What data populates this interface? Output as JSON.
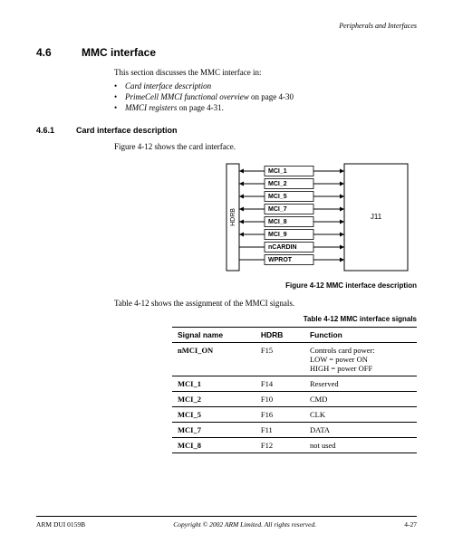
{
  "header": {
    "right": "Peripherals and Interfaces"
  },
  "section": {
    "number": "4.6",
    "title": "MMC interface"
  },
  "intro": "This section discusses the MMC interface in:",
  "bullets": [
    {
      "text": "Card interface description",
      "page": ""
    },
    {
      "text": "PrimeCell MMCI functional overview",
      "page": " on page 4-30"
    },
    {
      "text": "MMCI registers",
      "page": " on page 4-31."
    }
  ],
  "subsection": {
    "number": "4.6.1",
    "title": "Card interface description"
  },
  "fig_intro": "Figure 4-12 shows the card interface.",
  "diagram": {
    "left_label": "HDRB",
    "right_label": "J11",
    "signals": [
      "MCI_1",
      "MCI_2",
      "MCI_5",
      "MCI_7",
      "MCI_8",
      "MCI_9",
      "nCARDIN",
      "WPROT"
    ],
    "box_border": "#000000",
    "line_color": "#000000",
    "bg": "#ffffff",
    "font_size": 7
  },
  "fig_caption": "Figure 4-12 MMC interface description",
  "table_intro": "Table 4-12 shows the assignment of the MMCI signals.",
  "table_caption": "Table 4-12 MMC interface signals",
  "table": {
    "headers": [
      "Signal name",
      "HDRB",
      "Function"
    ],
    "rows": [
      {
        "name": "nMCI_ON",
        "hdrb": "F15",
        "func": "Controls card power:\nLOW = power ON\nHIGH = power OFF"
      },
      {
        "name": "MCI_1",
        "hdrb": "F14",
        "func": "Reserved"
      },
      {
        "name": "MCI_2",
        "hdrb": "F10",
        "func": "CMD"
      },
      {
        "name": "MCI_5",
        "hdrb": "F16",
        "func": "CLK"
      },
      {
        "name": "MCI_7",
        "hdrb": "F11",
        "func": "DATA"
      },
      {
        "name": "MCI_8",
        "hdrb": "F12",
        "func": "not used"
      }
    ]
  },
  "footer": {
    "left": "ARM DUI 0159B",
    "mid": "Copyright © 2002 ARM Limited. All rights reserved.",
    "right": "4-27"
  }
}
